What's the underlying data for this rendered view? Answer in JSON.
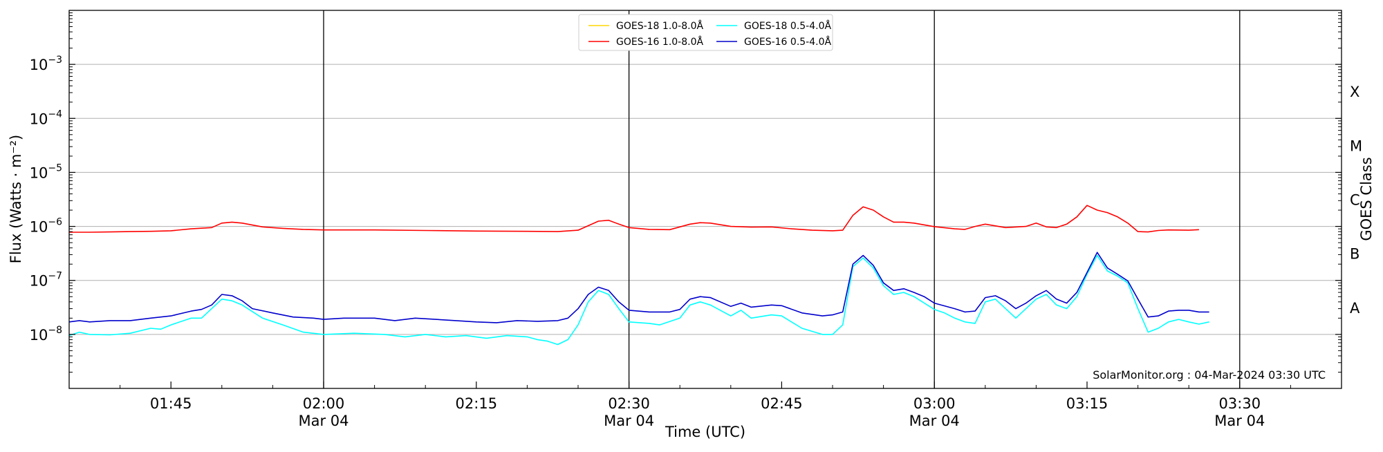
{
  "chart_data": {
    "type": "line",
    "title": "",
    "xlabel": "Time (UTC)",
    "ylabel": "Flux (Watts · m⁻²)",
    "right_axis_label": "GOES Class",
    "yscale": "log",
    "ylim": [
      1e-09,
      0.01
    ],
    "xlim": [
      "01:35",
      "03:40"
    ],
    "grid": "horizontal at decades",
    "legend_location": "top-center",
    "credit": "SolarMonitor.org : 04-Mar-2024 03:30 UTC",
    "x_ticks": [
      {
        "time": "01:45",
        "label": "01:45",
        "date": ""
      },
      {
        "time": "02:00",
        "label": "02:00",
        "date": "Mar 04"
      },
      {
        "time": "02:15",
        "label": "02:15",
        "date": ""
      },
      {
        "time": "02:30",
        "label": "02:30",
        "date": "Mar 04"
      },
      {
        "time": "02:45",
        "label": "02:45",
        "date": ""
      },
      {
        "time": "03:00",
        "label": "03:00",
        "date": "Mar 04"
      },
      {
        "time": "03:15",
        "label": "03:15",
        "date": ""
      },
      {
        "time": "03:30",
        "label": "03:30",
        "date": "Mar 04"
      }
    ],
    "vertical_lines": [
      "02:00",
      "02:30",
      "03:00",
      "03:30"
    ],
    "y_ticks": [
      {
        "value": 1e-08,
        "base": "10",
        "exp": "−8"
      },
      {
        "value": 1e-07,
        "base": "10",
        "exp": "−7"
      },
      {
        "value": 1e-06,
        "base": "10",
        "exp": "−6"
      },
      {
        "value": 1e-05,
        "base": "10",
        "exp": "−5"
      },
      {
        "value": 0.0001,
        "base": "10",
        "exp": "−4"
      },
      {
        "value": 0.001,
        "base": "10",
        "exp": "−3"
      }
    ],
    "goes_classes": [
      {
        "label": "A",
        "value": 3.16e-08
      },
      {
        "label": "B",
        "value": 3.16e-07
      },
      {
        "label": "C",
        "value": 3.16e-06
      },
      {
        "label": "M",
        "value": 3.16e-05
      },
      {
        "label": "X",
        "value": 0.000316
      }
    ],
    "series": [
      {
        "name": "GOES-18 1.0-8.0Å",
        "color": "#ffd700",
        "points": []
      },
      {
        "name": "GOES-16 1.0-8.0Å",
        "color": "#ff0000",
        "points": [
          [
            "01:35",
            7.8e-07
          ],
          [
            "01:37",
            7.8e-07
          ],
          [
            "01:39",
            7.9e-07
          ],
          [
            "01:41",
            8e-07
          ],
          [
            "01:43",
            8.1e-07
          ],
          [
            "01:45",
            8.3e-07
          ],
          [
            "01:47",
            9e-07
          ],
          [
            "01:49",
            9.5e-07
          ],
          [
            "01:50",
            1.15e-06
          ],
          [
            "01:51",
            1.2e-06
          ],
          [
            "01:52",
            1.15e-06
          ],
          [
            "01:54",
            9.8e-07
          ],
          [
            "01:56",
            9.2e-07
          ],
          [
            "01:58",
            8.8e-07
          ],
          [
            "02:00",
            8.6e-07
          ],
          [
            "02:05",
            8.6e-07
          ],
          [
            "02:10",
            8.4e-07
          ],
          [
            "02:15",
            8.2e-07
          ],
          [
            "02:20",
            8.1e-07
          ],
          [
            "02:23",
            8e-07
          ],
          [
            "02:25",
            8.5e-07
          ],
          [
            "02:27",
            1.25e-06
          ],
          [
            "02:28",
            1.3e-06
          ],
          [
            "02:29",
            1.1e-06
          ],
          [
            "02:30",
            9.5e-07
          ],
          [
            "02:32",
            8.8e-07
          ],
          [
            "02:34",
            8.7e-07
          ],
          [
            "02:36",
            1.1e-06
          ],
          [
            "02:37",
            1.17e-06
          ],
          [
            "02:38",
            1.15e-06
          ],
          [
            "02:40",
            1e-06
          ],
          [
            "02:42",
            9.7e-07
          ],
          [
            "02:44",
            9.8e-07
          ],
          [
            "02:46",
            9e-07
          ],
          [
            "02:48",
            8.5e-07
          ],
          [
            "02:50",
            8.3e-07
          ],
          [
            "02:51",
            8.5e-07
          ],
          [
            "02:52",
            1.6e-06
          ],
          [
            "02:53",
            2.3e-06
          ],
          [
            "02:54",
            2e-06
          ],
          [
            "02:55",
            1.5e-06
          ],
          [
            "02:56",
            1.2e-06
          ],
          [
            "02:57",
            1.2e-06
          ],
          [
            "02:58",
            1.15e-06
          ],
          [
            "03:00",
            9.9e-07
          ],
          [
            "03:02",
            9e-07
          ],
          [
            "03:03",
            8.8e-07
          ],
          [
            "03:04",
            1e-06
          ],
          [
            "03:05",
            1.1e-06
          ],
          [
            "03:07",
            9.5e-07
          ],
          [
            "03:09",
            1e-06
          ],
          [
            "03:10",
            1.15e-06
          ],
          [
            "03:11",
            9.8e-07
          ],
          [
            "03:12",
            9.5e-07
          ],
          [
            "03:13",
            1.1e-06
          ],
          [
            "03:14",
            1.5e-06
          ],
          [
            "03:15",
            2.45e-06
          ],
          [
            "03:16",
            2e-06
          ],
          [
            "03:17",
            1.8e-06
          ],
          [
            "03:18",
            1.5e-06
          ],
          [
            "03:19",
            1.15e-06
          ],
          [
            "03:20",
            8e-07
          ],
          [
            "03:21",
            7.9e-07
          ],
          [
            "03:22",
            8.4e-07
          ],
          [
            "03:23",
            8.6e-07
          ],
          [
            "03:25",
            8.5e-07
          ],
          [
            "03:26",
            8.7e-07
          ]
        ]
      },
      {
        "name": "GOES-18 0.5-4.0Å",
        "color": "#00ffff",
        "points": [
          [
            "01:35",
            9.5e-09
          ],
          [
            "01:36",
            1.1e-08
          ],
          [
            "01:37",
            1e-08
          ],
          [
            "01:39",
            9.8e-09
          ],
          [
            "01:41",
            1.05e-08
          ],
          [
            "01:43",
            1.3e-08
          ],
          [
            "01:44",
            1.25e-08
          ],
          [
            "01:45",
            1.5e-08
          ],
          [
            "01:47",
            2e-08
          ],
          [
            "01:48",
            2e-08
          ],
          [
            "01:49",
            3e-08
          ],
          [
            "01:50",
            4.5e-08
          ],
          [
            "01:51",
            4.2e-08
          ],
          [
            "01:52",
            3.5e-08
          ],
          [
            "01:54",
            2e-08
          ],
          [
            "01:56",
            1.5e-08
          ],
          [
            "01:58",
            1.1e-08
          ],
          [
            "02:00",
            1e-08
          ],
          [
            "02:03",
            1.05e-08
          ],
          [
            "02:06",
            1e-08
          ],
          [
            "02:08",
            9e-09
          ],
          [
            "02:10",
            1e-08
          ],
          [
            "02:12",
            9e-09
          ],
          [
            "02:14",
            9.5e-09
          ],
          [
            "02:16",
            8.5e-09
          ],
          [
            "02:18",
            9.5e-09
          ],
          [
            "02:20",
            9e-09
          ],
          [
            "02:21",
            8e-09
          ],
          [
            "02:22",
            7.5e-09
          ],
          [
            "02:23",
            6.5e-09
          ],
          [
            "02:24",
            8e-09
          ],
          [
            "02:25",
            1.5e-08
          ],
          [
            "02:26",
            4e-08
          ],
          [
            "02:27",
            6.5e-08
          ],
          [
            "02:28",
            5.5e-08
          ],
          [
            "02:29",
            3e-08
          ],
          [
            "02:30",
            1.7e-08
          ],
          [
            "02:32",
            1.6e-08
          ],
          [
            "02:33",
            1.5e-08
          ],
          [
            "02:35",
            2e-08
          ],
          [
            "02:36",
            3.5e-08
          ],
          [
            "02:37",
            4e-08
          ],
          [
            "02:38",
            3.5e-08
          ],
          [
            "02:40",
            2.2e-08
          ],
          [
            "02:41",
            2.8e-08
          ],
          [
            "02:42",
            2e-08
          ],
          [
            "02:44",
            2.3e-08
          ],
          [
            "02:45",
            2.2e-08
          ],
          [
            "02:47",
            1.3e-08
          ],
          [
            "02:49",
            1e-08
          ],
          [
            "02:50",
            1e-08
          ],
          [
            "02:51",
            1.5e-08
          ],
          [
            "02:52",
            1.8e-07
          ],
          [
            "02:53",
            2.6e-07
          ],
          [
            "02:54",
            1.7e-07
          ],
          [
            "02:55",
            8e-08
          ],
          [
            "02:56",
            5.5e-08
          ],
          [
            "02:57",
            6e-08
          ],
          [
            "02:58",
            5e-08
          ],
          [
            "03:00",
            2.9e-08
          ],
          [
            "03:01",
            2.5e-08
          ],
          [
            "03:02",
            2e-08
          ],
          [
            "03:03",
            1.7e-08
          ],
          [
            "03:04",
            1.6e-08
          ],
          [
            "03:05",
            4e-08
          ],
          [
            "03:06",
            4.5e-08
          ],
          [
            "03:07",
            3e-08
          ],
          [
            "03:08",
            2e-08
          ],
          [
            "03:09",
            3e-08
          ],
          [
            "03:10",
            4.5e-08
          ],
          [
            "03:11",
            5.5e-08
          ],
          [
            "03:12",
            3.5e-08
          ],
          [
            "03:13",
            3e-08
          ],
          [
            "03:14",
            5e-08
          ],
          [
            "03:15",
            1.3e-07
          ],
          [
            "03:16",
            2.9e-07
          ],
          [
            "03:17",
            1.5e-07
          ],
          [
            "03:18",
            1.2e-07
          ],
          [
            "03:19",
            9e-08
          ],
          [
            "03:20",
            3e-08
          ],
          [
            "03:21",
            1.1e-08
          ],
          [
            "03:22",
            1.3e-08
          ],
          [
            "03:23",
            1.7e-08
          ],
          [
            "03:24",
            1.9e-08
          ],
          [
            "03:25",
            1.7e-08
          ],
          [
            "03:26",
            1.55e-08
          ],
          [
            "03:27",
            1.7e-08
          ]
        ]
      },
      {
        "name": "GOES-16 0.5-4.0Å",
        "color": "#0000cc",
        "points": [
          [
            "01:35",
            1.7e-08
          ],
          [
            "01:36",
            1.8e-08
          ],
          [
            "01:37",
            1.7e-08
          ],
          [
            "01:39",
            1.8e-08
          ],
          [
            "01:41",
            1.8e-08
          ],
          [
            "01:43",
            2e-08
          ],
          [
            "01:45",
            2.2e-08
          ],
          [
            "01:47",
            2.7e-08
          ],
          [
            "01:48",
            2.9e-08
          ],
          [
            "01:49",
            3.5e-08
          ],
          [
            "01:50",
            5.5e-08
          ],
          [
            "01:51",
            5.2e-08
          ],
          [
            "01:52",
            4.2e-08
          ],
          [
            "01:53",
            3e-08
          ],
          [
            "01:55",
            2.5e-08
          ],
          [
            "01:57",
            2.1e-08
          ],
          [
            "01:59",
            2e-08
          ],
          [
            "02:00",
            1.9e-08
          ],
          [
            "02:02",
            2e-08
          ],
          [
            "02:05",
            2e-08
          ],
          [
            "02:07",
            1.8e-08
          ],
          [
            "02:09",
            2e-08
          ],
          [
            "02:11",
            1.9e-08
          ],
          [
            "02:13",
            1.8e-08
          ],
          [
            "02:15",
            1.7e-08
          ],
          [
            "02:17",
            1.65e-08
          ],
          [
            "02:19",
            1.8e-08
          ],
          [
            "02:21",
            1.75e-08
          ],
          [
            "02:23",
            1.8e-08
          ],
          [
            "02:24",
            2e-08
          ],
          [
            "02:25",
            3e-08
          ],
          [
            "02:26",
            5.5e-08
          ],
          [
            "02:27",
            7.5e-08
          ],
          [
            "02:28",
            6.5e-08
          ],
          [
            "02:29",
            4e-08
          ],
          [
            "02:30",
            2.8e-08
          ],
          [
            "02:32",
            2.6e-08
          ],
          [
            "02:34",
            2.6e-08
          ],
          [
            "02:35",
            2.9e-08
          ],
          [
            "02:36",
            4.5e-08
          ],
          [
            "02:37",
            5e-08
          ],
          [
            "02:38",
            4.8e-08
          ],
          [
            "02:40",
            3.3e-08
          ],
          [
            "02:41",
            3.8e-08
          ],
          [
            "02:42",
            3.2e-08
          ],
          [
            "02:44",
            3.5e-08
          ],
          [
            "02:45",
            3.4e-08
          ],
          [
            "02:47",
            2.5e-08
          ],
          [
            "02:49",
            2.2e-08
          ],
          [
            "02:50",
            2.3e-08
          ],
          [
            "02:51",
            2.6e-08
          ],
          [
            "02:52",
            2e-07
          ],
          [
            "02:53",
            2.9e-07
          ],
          [
            "02:54",
            1.9e-07
          ],
          [
            "02:55",
            9e-08
          ],
          [
            "02:56",
            6.5e-08
          ],
          [
            "02:57",
            7e-08
          ],
          [
            "02:58",
            6e-08
          ],
          [
            "02:59",
            5e-08
          ],
          [
            "03:00",
            3.8e-08
          ],
          [
            "03:02",
            3e-08
          ],
          [
            "03:03",
            2.6e-08
          ],
          [
            "03:04",
            2.7e-08
          ],
          [
            "03:05",
            4.8e-08
          ],
          [
            "03:06",
            5.2e-08
          ],
          [
            "03:07",
            4.2e-08
          ],
          [
            "03:08",
            3e-08
          ],
          [
            "03:09",
            3.8e-08
          ],
          [
            "03:10",
            5.2e-08
          ],
          [
            "03:11",
            6.5e-08
          ],
          [
            "03:12",
            4.5e-08
          ],
          [
            "03:13",
            3.8e-08
          ],
          [
            "03:14",
            6e-08
          ],
          [
            "03:15",
            1.4e-07
          ],
          [
            "03:16",
            3.3e-07
          ],
          [
            "03:17",
            1.7e-07
          ],
          [
            "03:18",
            1.3e-07
          ],
          [
            "03:19",
            9.8e-08
          ],
          [
            "03:20",
            4.5e-08
          ],
          [
            "03:21",
            2.1e-08
          ],
          [
            "03:22",
            2.2e-08
          ],
          [
            "03:23",
            2.7e-08
          ],
          [
            "03:24",
            2.8e-08
          ],
          [
            "03:25",
            2.8e-08
          ],
          [
            "03:26",
            2.6e-08
          ],
          [
            "03:27",
            2.6e-08
          ]
        ]
      }
    ]
  }
}
